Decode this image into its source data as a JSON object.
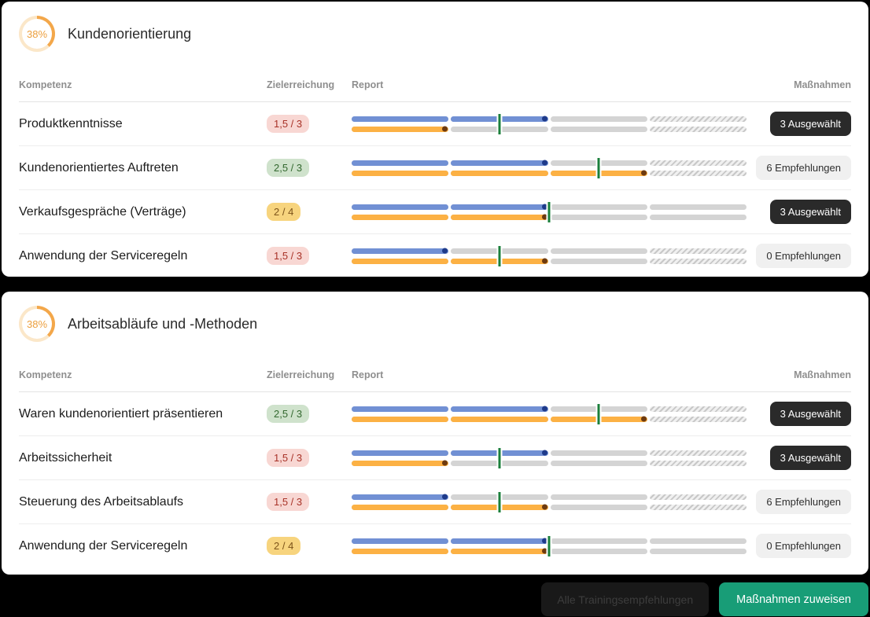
{
  "colors": {
    "page_background": "#000000",
    "ring_arc": "#f3a74a",
    "ring_track": "#fbe7c9",
    "ring_text": "#ec9f3e",
    "bar_blue": "#7190d4",
    "bar_blue_dot": "#1e3a8a",
    "bar_orange": "#fcb144",
    "bar_orange_dot": "#6d3a10",
    "bar_gray": "#d4d4d4",
    "target_marker_green": "#1b7f3b",
    "badge_red_bg": "#f8d7d3",
    "badge_green_bg": "#cfe2cc",
    "badge_yellow_bg": "#f7d47e",
    "button_dark_bg": "#2a2a2a",
    "button_light_bg": "#f0f0f0",
    "primary_button_green": "#189d77"
  },
  "cards": [
    {
      "progress": {
        "percent": 38,
        "label": "38%"
      },
      "title": "Kundenorientierung",
      "columns": {
        "kompetenz": "Kompetenz",
        "zielerreichung": "Zielerreichung",
        "report": "Report",
        "massnahmen": "Maßnahmen"
      },
      "rows": [
        {
          "kompetenz": "Produktkenntnisse",
          "zielerreichung": "1,5 / 3",
          "status": "red",
          "report": {
            "blue": 2,
            "orange": 1,
            "target": 1.5,
            "segments": 4,
            "hatched_last": true
          },
          "massnahme": {
            "label": "3 Ausgewählt",
            "variant": "dark"
          }
        },
        {
          "kompetenz": "Kundenorientiertes Auftreten",
          "zielerreichung": "2,5 / 3",
          "status": "green",
          "report": {
            "blue": 2,
            "orange": 3,
            "target": 2.5,
            "segments": 4,
            "hatched_last": true
          },
          "massnahme": {
            "label": "6 Empfehlungen",
            "variant": "light"
          }
        },
        {
          "kompetenz": "Verkaufsgespräche (Verträge)",
          "zielerreichung": "2 / 4",
          "status": "yellow",
          "report": {
            "blue": 2,
            "orange": 2,
            "target": 2,
            "segments": 4,
            "hatched_last": false
          },
          "massnahme": {
            "label": "3 Ausgewählt",
            "variant": "dark"
          }
        },
        {
          "kompetenz": "Anwendung der Serviceregeln",
          "zielerreichung": "1,5 / 3",
          "status": "red",
          "report": {
            "blue": 1,
            "orange": 2,
            "target": 1.5,
            "segments": 4,
            "hatched_last": true
          },
          "massnahme": {
            "label": "0 Empfehlungen",
            "variant": "light"
          }
        }
      ]
    },
    {
      "progress": {
        "percent": 38,
        "label": "38%"
      },
      "title": "Arbeitsabläufe und -Methoden",
      "columns": {
        "kompetenz": "Kompetenz",
        "zielerreichung": "Zielerreichung",
        "report": "Report",
        "massnahmen": "Maßnahmen"
      },
      "rows": [
        {
          "kompetenz": "Waren kundenorientiert präsentieren",
          "zielerreichung": "2,5 / 3",
          "status": "green",
          "report": {
            "blue": 2,
            "orange": 3,
            "target": 2.5,
            "segments": 4,
            "hatched_last": true
          },
          "massnahme": {
            "label": "3 Ausgewählt",
            "variant": "dark"
          }
        },
        {
          "kompetenz": "Arbeitssicherheit",
          "zielerreichung": "1,5 / 3",
          "status": "red",
          "report": {
            "blue": 2,
            "orange": 1,
            "target": 1.5,
            "segments": 4,
            "hatched_last": true
          },
          "massnahme": {
            "label": "3 Ausgewählt",
            "variant": "dark"
          }
        },
        {
          "kompetenz": "Steuerung des Arbeitsablaufs",
          "zielerreichung": "1,5 / 3",
          "status": "red",
          "report": {
            "blue": 1,
            "orange": 2,
            "target": 1.5,
            "segments": 4,
            "hatched_last": true
          },
          "massnahme": {
            "label": "6 Empfehlungen",
            "variant": "light"
          }
        },
        {
          "kompetenz": "Anwendung der Serviceregeln",
          "zielerreichung": "2 / 4",
          "status": "yellow",
          "report": {
            "blue": 2,
            "orange": 2,
            "target": 2,
            "segments": 4,
            "hatched_last": false
          },
          "massnahme": {
            "label": "0 Empfehlungen",
            "variant": "light"
          }
        }
      ]
    }
  ],
  "footer": {
    "secondary_button": "Alle Trainingsempfehlungen",
    "primary_button": "Maßnahmen zuweisen"
  }
}
